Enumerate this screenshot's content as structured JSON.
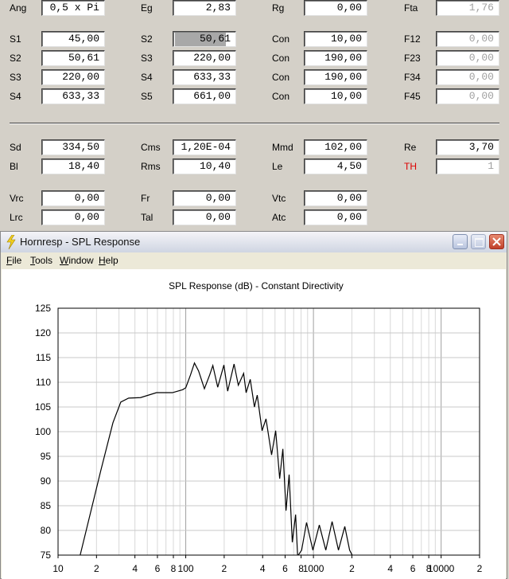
{
  "form": {
    "rows": [
      [
        {
          "label": "Ang",
          "value": "0,5 x Pi"
        },
        {
          "label": "Eg",
          "value": "2,83"
        },
        {
          "label": "Rg",
          "value": "0,00"
        },
        {
          "label": "Fta",
          "value": "1,76",
          "disabled": true
        }
      ],
      [
        {
          "label": "S1",
          "value": "45,00"
        },
        {
          "label": "S2",
          "value": "50,61",
          "highlight": true
        },
        {
          "label": "Con",
          "value": "10,00"
        },
        {
          "label": "F12",
          "value": "0,00",
          "disabled": true
        }
      ],
      [
        {
          "label": "S2",
          "value": "50,61"
        },
        {
          "label": "S3",
          "value": "220,00"
        },
        {
          "label": "Con",
          "value": "190,00"
        },
        {
          "label": "F23",
          "value": "0,00",
          "disabled": true
        }
      ],
      [
        {
          "label": "S3",
          "value": "220,00"
        },
        {
          "label": "S4",
          "value": "633,33"
        },
        {
          "label": "Con",
          "value": "190,00"
        },
        {
          "label": "F34",
          "value": "0,00",
          "disabled": true
        }
      ],
      [
        {
          "label": "S4",
          "value": "633,33"
        },
        {
          "label": "S5",
          "value": "661,00"
        },
        {
          "label": "Con",
          "value": "10,00"
        },
        {
          "label": "F45",
          "value": "0,00",
          "disabled": true
        }
      ],
      [
        {
          "label": "Sd",
          "value": "334,50"
        },
        {
          "label": "Cms",
          "value": "1,20E-04"
        },
        {
          "label": "Mmd",
          "value": "102,00"
        },
        {
          "label": "Re",
          "value": "3,70"
        }
      ],
      [
        {
          "label": "Bl",
          "value": "18,40"
        },
        {
          "label": "Rms",
          "value": "10,40"
        },
        {
          "label": "Le",
          "value": "4,50"
        },
        {
          "label": "TH",
          "value": "1",
          "disabled": true,
          "label_color": "#dd0000"
        }
      ],
      [
        {
          "label": "Vrc",
          "value": "0,00"
        },
        {
          "label": "Fr",
          "value": "0,00"
        },
        {
          "label": "Vtc",
          "value": "0,00"
        }
      ],
      [
        {
          "label": "Lrc",
          "value": "0,00"
        },
        {
          "label": "Tal",
          "value": "0,00"
        },
        {
          "label": "Atc",
          "value": "0,00"
        }
      ]
    ]
  },
  "window": {
    "title": "Hornresp - SPL Response",
    "menu": [
      "File",
      "Tools",
      "Window",
      "Help"
    ]
  },
  "chart_data": {
    "type": "line",
    "title": "SPL Response (dB) - Constant Directivity",
    "xscale": "log",
    "grid": true,
    "xlim": [
      10,
      20000
    ],
    "ylim": [
      75,
      125
    ],
    "xticks": [
      10,
      {
        "value": 20,
        "label": "2"
      },
      {
        "value": 40,
        "label": "4"
      },
      {
        "value": 60,
        "label": "6"
      },
      {
        "value": 80,
        "label": "8"
      },
      100,
      {
        "value": 200,
        "label": "2"
      },
      {
        "value": 400,
        "label": "4"
      },
      {
        "value": 600,
        "label": "6"
      },
      {
        "value": 800,
        "label": "8"
      },
      1000,
      {
        "value": 2000,
        "label": "2"
      },
      {
        "value": 4000,
        "label": "4"
      },
      {
        "value": 6000,
        "label": "6"
      },
      {
        "value": 8000,
        "label": "8"
      },
      10000,
      {
        "value": 20000,
        "label": "2"
      }
    ],
    "yticks": [
      75,
      80,
      85,
      90,
      95,
      100,
      105,
      110,
      115,
      120,
      125
    ],
    "x": [
      14.9,
      17.5,
      21.6,
      26.9,
      31,
      35.7,
      44.2,
      59,
      78.6,
      94.6,
      100,
      109,
      117,
      126,
      140,
      154,
      163,
      178,
      199,
      213,
      239,
      258,
      284,
      297,
      320,
      345,
      363,
      396,
      425,
      470,
      506,
      544,
      576,
      610,
      645,
      683,
      725,
      752,
      808,
      883,
      990,
      1112,
      1250,
      1400,
      1570,
      1760,
      1920,
      2030
    ],
    "series": [
      {
        "color": "#000000",
        "values": [
          75,
          82.4,
          92.1,
          101.8,
          106,
          106.8,
          106.9,
          107.9,
          107.9,
          108.5,
          108.9,
          111.5,
          113.9,
          112.3,
          108.7,
          111.5,
          113.4,
          109,
          113.5,
          108.2,
          113.7,
          109.4,
          111.8,
          107.9,
          110.6,
          105,
          107.4,
          100.2,
          102.6,
          95.3,
          100.2,
          90.5,
          96.5,
          84,
          91.3,
          77.6,
          83.2,
          74.8,
          76,
          81.6,
          76,
          81.1,
          76,
          81.8,
          76,
          80.8,
          76,
          74.8
        ]
      }
    ]
  }
}
